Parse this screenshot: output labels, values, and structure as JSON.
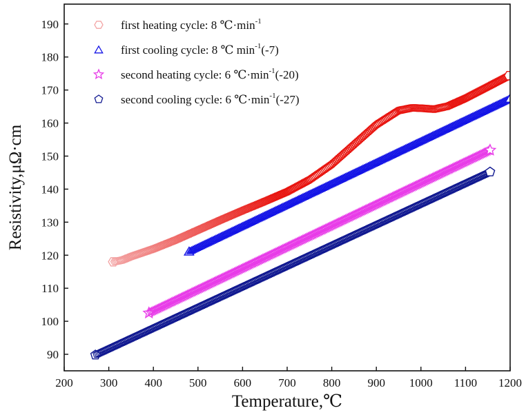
{
  "chart_data": {
    "type": "scatter",
    "title": "",
    "xlabel": "Temperature,℃",
    "ylabel": "Resistivity,μΩ·cm",
    "xlim": [
      200,
      1200
    ],
    "ylim": [
      85,
      196
    ],
    "xticks": [
      200,
      300,
      400,
      500,
      600,
      700,
      800,
      900,
      1000,
      1100,
      1200
    ],
    "yticks": [
      90,
      100,
      110,
      120,
      130,
      140,
      150,
      160,
      170,
      180,
      190
    ],
    "grid": false,
    "legend_position": "top-left",
    "series": [
      {
        "name": "first heating cycle: 8 ℃·min",
        "name_sup": "-1",
        "name_suffix": "",
        "marker": "hexagon",
        "color_start": "#f3a5a5",
        "color": "#e8140f",
        "points": [
          [
            310,
            118.0
          ],
          [
            330,
            118.5
          ],
          [
            350,
            119.6
          ],
          [
            400,
            121.9
          ],
          [
            450,
            124.6
          ],
          [
            500,
            127.6
          ],
          [
            550,
            130.6
          ],
          [
            600,
            133.5
          ],
          [
            650,
            136.3
          ],
          [
            700,
            139.2
          ],
          [
            750,
            142.8
          ],
          [
            800,
            147.5
          ],
          [
            850,
            153.5
          ],
          [
            900,
            159.5
          ],
          [
            950,
            163.8
          ],
          [
            980,
            164.6
          ],
          [
            1000,
            164.5
          ],
          [
            1030,
            164.2
          ],
          [
            1060,
            165.1
          ],
          [
            1100,
            167.5
          ],
          [
            1150,
            171.0
          ],
          [
            1200,
            174.5
          ]
        ]
      },
      {
        "name": "first cooling cycle: 8 ℃  min",
        "name_sup": "-1",
        "name_suffix": "(-7)",
        "marker": "triangle",
        "color": "#1414e6",
        "points": [
          [
            480,
            121.2
          ],
          [
            1200,
            167.5
          ]
        ]
      },
      {
        "name": "second heating cycle: 6 ℃·min",
        "name_sup": "-1",
        "name_suffix": "(-20)",
        "marker": "star",
        "color": "#e83ce8",
        "points": [
          [
            390,
            102.5
          ],
          [
            1155,
            151.8
          ]
        ]
      },
      {
        "name": "second cooling cycle: 6 ℃·min",
        "name_sup": "-1",
        "name_suffix": "(-27)",
        "marker": "pentagon",
        "color": "#101890",
        "points": [
          [
            270,
            89.8
          ],
          [
            1155,
            145.2
          ]
        ]
      }
    ]
  }
}
